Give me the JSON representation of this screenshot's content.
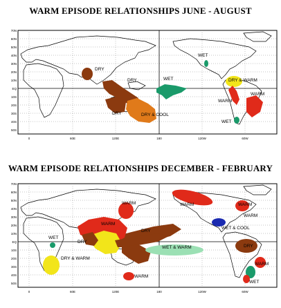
{
  "maps": [
    {
      "title": "WARM EPISODE RELATIONSHIPS   JUNE - AUGUST",
      "lat_labels": [
        "70N",
        "60N",
        "50N",
        "40N",
        "30N",
        "20N",
        "10N",
        "EQ",
        "10S",
        "20S",
        "30S",
        "40S",
        "50S"
      ],
      "lon_labels": [
        "0",
        "60E",
        "120E",
        "180",
        "120W",
        "60W"
      ],
      "regions": [
        {
          "label": "DRY",
          "color": "#8b3a0f"
        },
        {
          "label": "DRY",
          "color": "#8b3a0f"
        },
        {
          "label": "DRY",
          "color": "#8b3a0f"
        },
        {
          "label": "WET",
          "color": "#1a9a6a"
        },
        {
          "label": "DRY & COOL",
          "color": "#e07a1a"
        },
        {
          "label": "WET",
          "color": "#1a9a6a"
        },
        {
          "label": "DRY & WARM",
          "color": "#f2e51a"
        },
        {
          "label": "WARM",
          "color": "#e02a1a"
        },
        {
          "label": "WARM",
          "color": "#e02a1a"
        },
        {
          "label": "WET",
          "color": "#1a9a6a"
        }
      ]
    },
    {
      "title": "WARM EPISODE RELATIONSHIPS   DECEMBER - FEBRUARY",
      "lat_labels": [
        "70N",
        "60N",
        "50N",
        "40N",
        "30N",
        "20N",
        "10N",
        "EQ",
        "10S",
        "20S",
        "30S",
        "40S",
        "50S"
      ],
      "lon_labels": [
        "0",
        "60E",
        "120E",
        "180",
        "120W",
        "60W"
      ],
      "regions": [
        {
          "label": "WARM",
          "color": "#e02a1a"
        },
        {
          "label": "WARM",
          "color": "#e02a1a"
        },
        {
          "label": "WARM",
          "color": "#e02a1a"
        },
        {
          "label": "DRY",
          "color": "#8b3a0f"
        },
        {
          "label": "WET",
          "color": "#1a9a6a"
        },
        {
          "label": "DRY & WARM",
          "color": "#f2e51a"
        },
        {
          "label": "DRY",
          "color": "#8b3a0f"
        },
        {
          "label": "WARM",
          "color": "#e02a1a"
        },
        {
          "label": "WET & WARM",
          "color": "#9be0b4"
        },
        {
          "label": "WARM",
          "color": "#e02a1a"
        },
        {
          "label": "WARM",
          "color": "#e02a1a"
        },
        {
          "label": "WET & COOL",
          "color": "#1a2ab0"
        },
        {
          "label": "DRY",
          "color": "#8b3a0f"
        },
        {
          "label": "WARM",
          "color": "#e02a1a"
        },
        {
          "label": "WET",
          "color": "#1a9a6a"
        }
      ]
    }
  ]
}
